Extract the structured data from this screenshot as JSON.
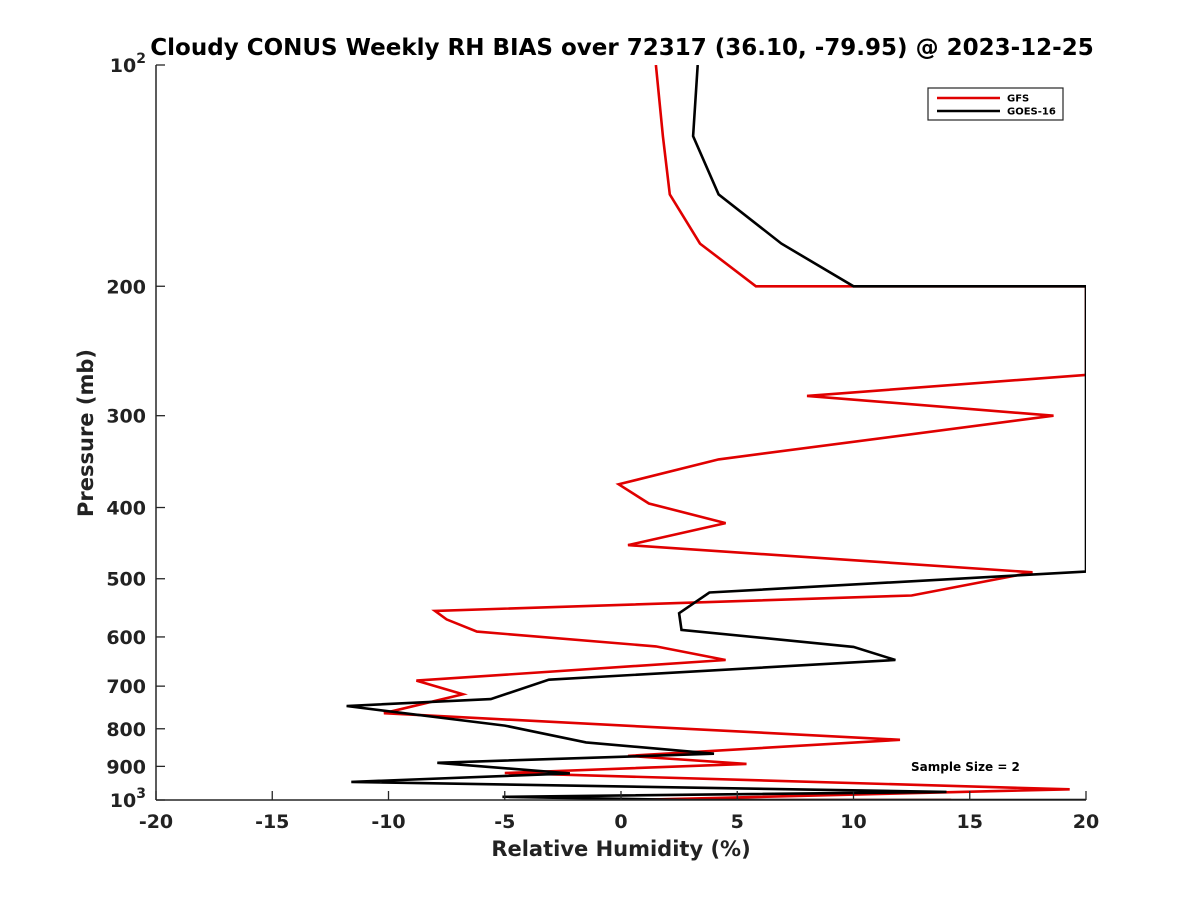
{
  "chart_data": {
    "type": "line",
    "title": "Cloudy CONUS Weekly RH BIAS over 72317 (36.10, -79.95) @ 2023-12-25",
    "xlabel": "Relative Humidity (%)",
    "ylabel": "Pressure (mb)",
    "xlim": [
      -20,
      20
    ],
    "ylim": [
      100,
      1000
    ],
    "yscale": "log",
    "y_reversed": true,
    "xticks": [
      -20,
      -15,
      -10,
      -5,
      0,
      5,
      10,
      15,
      20
    ],
    "xtick_labels": [
      "-20",
      "-15",
      "-10",
      "-5",
      "0",
      "5",
      "10",
      "15",
      "20"
    ],
    "yticks": [
      {
        "value": 100,
        "base": "10",
        "exp": "2"
      },
      {
        "value": 200,
        "label": "200"
      },
      {
        "value": 300,
        "label": "300"
      },
      {
        "value": 400,
        "label": "400"
      },
      {
        "value": 500,
        "label": "500"
      },
      {
        "value": 600,
        "label": "600"
      },
      {
        "value": 700,
        "label": "700"
      },
      {
        "value": 800,
        "label": "800"
      },
      {
        "value": 900,
        "label": "900"
      },
      {
        "value": 1000,
        "base": "10",
        "exp": "3"
      }
    ],
    "grid": false,
    "legend_position": "top-right",
    "annotation": "Sample Size = 2",
    "series": [
      {
        "name": "GFS",
        "color": "#e00000",
        "points": [
          [
            1.5,
            100
          ],
          [
            1.8,
            125
          ],
          [
            2.1,
            150
          ],
          [
            3.4,
            175
          ],
          [
            5.8,
            200
          ],
          [
            20,
            200
          ],
          [
            20,
            264
          ],
          [
            8,
            282
          ],
          [
            18.6,
            300
          ],
          [
            4.2,
            344
          ],
          [
            -0.1,
            372
          ],
          [
            1.2,
            395
          ],
          [
            4.5,
            420
          ],
          [
            0.3,
            450
          ],
          [
            17.7,
            490
          ],
          [
            12.5,
            527
          ],
          [
            -8,
            553
          ],
          [
            -7.5,
            568
          ],
          [
            -6.2,
            590
          ],
          [
            1.5,
            618
          ],
          [
            4.5,
            645
          ],
          [
            -8.8,
            688
          ],
          [
            -6.8,
            718
          ],
          [
            -10.2,
            762
          ],
          [
            12,
            828
          ],
          [
            0.3,
            871
          ],
          [
            5.4,
            893
          ],
          [
            -5,
            919
          ],
          [
            19.3,
            967
          ],
          [
            0.5,
            1000
          ],
          [
            1.5,
            1000
          ],
          [
            -1.5,
            1000
          ],
          [
            7,
            1000
          ],
          [
            14.2,
            1000
          ],
          [
            3.8,
            1000
          ]
        ]
      },
      {
        "name": "GOES-16",
        "color": "#000000",
        "points": [
          [
            3.3,
            100
          ],
          [
            3.1,
            125
          ],
          [
            4.2,
            150
          ],
          [
            6.9,
            175
          ],
          [
            10,
            200
          ],
          [
            20,
            200
          ],
          [
            20,
            489
          ],
          [
            3.8,
            522
          ],
          [
            2.5,
            557
          ],
          [
            2.6,
            587
          ],
          [
            10,
            619
          ],
          [
            11.8,
            645
          ],
          [
            -3.1,
            686
          ],
          [
            -5.6,
            729
          ],
          [
            -11.8,
            745
          ],
          [
            -5,
            792
          ],
          [
            -1.5,
            835
          ],
          [
            4,
            865
          ],
          [
            -7.9,
            890
          ],
          [
            -2.2,
            920
          ],
          [
            -11.6,
            945
          ],
          [
            14,
            975
          ],
          [
            -5.1,
            990
          ],
          [
            2.9,
            1000
          ],
          [
            4.7,
            1000
          ],
          [
            20,
            1000
          ],
          [
            12.5,
            1000
          ]
        ]
      }
    ]
  }
}
